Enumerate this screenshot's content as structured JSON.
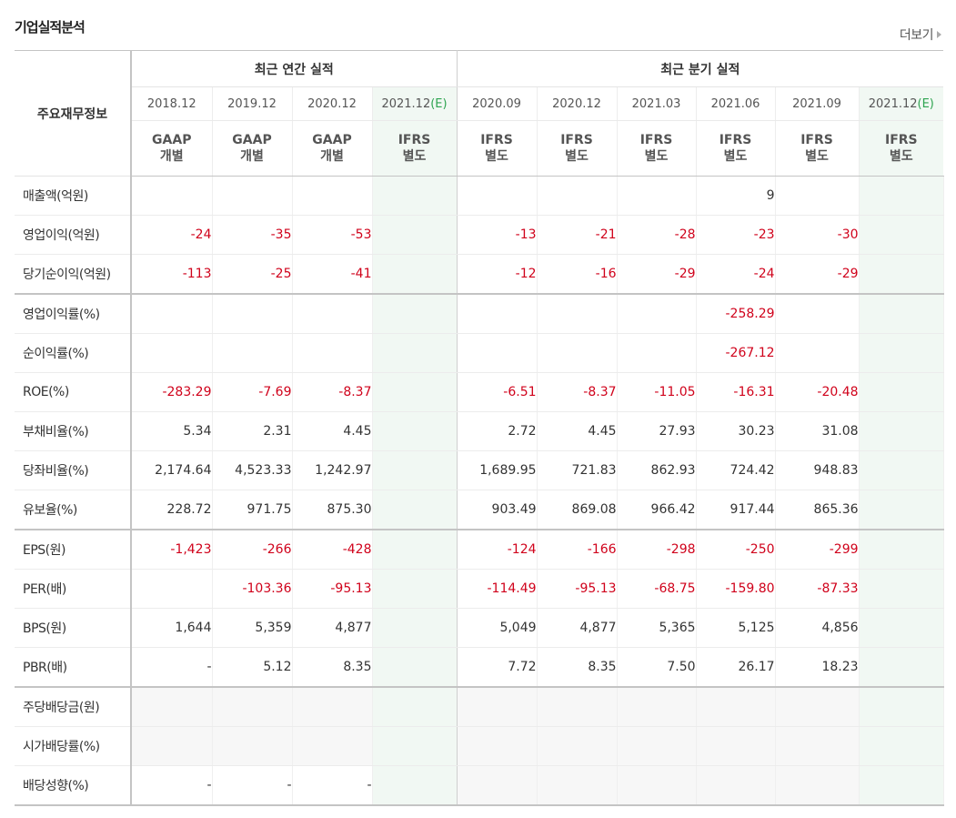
{
  "header": {
    "title": "기업실적분석",
    "more_label": "더보기"
  },
  "table": {
    "corner_label": "주요재무정보",
    "groups": [
      {
        "label": "최근 연간 실적"
      },
      {
        "label": "최근 분기 실적"
      }
    ],
    "columns": [
      {
        "period": "2018.12",
        "est": "",
        "std1": "GAAP",
        "std2": "개별"
      },
      {
        "period": "2019.12",
        "est": "",
        "std1": "GAAP",
        "std2": "개별"
      },
      {
        "period": "2020.12",
        "est": "",
        "std1": "GAAP",
        "std2": "개별"
      },
      {
        "period": "2021.12",
        "est": "(E)",
        "std1": "IFRS",
        "std2": "별도"
      },
      {
        "period": "2020.09",
        "est": "",
        "std1": "IFRS",
        "std2": "별도"
      },
      {
        "period": "2020.12",
        "est": "",
        "std1": "IFRS",
        "std2": "별도"
      },
      {
        "period": "2021.03",
        "est": "",
        "std1": "IFRS",
        "std2": "별도"
      },
      {
        "period": "2021.06",
        "est": "",
        "std1": "IFRS",
        "std2": "별도"
      },
      {
        "period": "2021.09",
        "est": "",
        "std1": "IFRS",
        "std2": "별도"
      },
      {
        "period": "2021.12",
        "est": "(E)",
        "std1": "IFRS",
        "std2": "별도"
      }
    ],
    "rows": [
      {
        "label": "매출액(억원)",
        "values": [
          "",
          "",
          "",
          "",
          "",
          "",
          "",
          "9",
          "",
          ""
        ]
      },
      {
        "label": "영업이익(억원)",
        "values": [
          "-24",
          "-35",
          "-53",
          "",
          "-13",
          "-21",
          "-28",
          "-23",
          "-30",
          ""
        ]
      },
      {
        "label": "당기순이익(억원)",
        "values": [
          "-113",
          "-25",
          "-41",
          "",
          "-12",
          "-16",
          "-29",
          "-24",
          "-29",
          ""
        ]
      },
      {
        "label": "영업이익률(%)",
        "values": [
          "",
          "",
          "",
          "",
          "",
          "",
          "",
          "-258.29",
          "",
          ""
        ]
      },
      {
        "label": "순이익률(%)",
        "values": [
          "",
          "",
          "",
          "",
          "",
          "",
          "",
          "-267.12",
          "",
          ""
        ]
      },
      {
        "label": "ROE(%)",
        "values": [
          "-283.29",
          "-7.69",
          "-8.37",
          "",
          "-6.51",
          "-8.37",
          "-11.05",
          "-16.31",
          "-20.48",
          ""
        ]
      },
      {
        "label": "부채비율(%)",
        "values": [
          "5.34",
          "2.31",
          "4.45",
          "",
          "2.72",
          "4.45",
          "27.93",
          "30.23",
          "31.08",
          ""
        ]
      },
      {
        "label": "당좌비율(%)",
        "values": [
          "2,174.64",
          "4,523.33",
          "1,242.97",
          "",
          "1,689.95",
          "721.83",
          "862.93",
          "724.42",
          "948.83",
          ""
        ]
      },
      {
        "label": "유보율(%)",
        "values": [
          "228.72",
          "971.75",
          "875.30",
          "",
          "903.49",
          "869.08",
          "966.42",
          "917.44",
          "865.36",
          ""
        ]
      },
      {
        "label": "EPS(원)",
        "values": [
          "-1,423",
          "-266",
          "-428",
          "",
          "-124",
          "-166",
          "-298",
          "-250",
          "-299",
          ""
        ]
      },
      {
        "label": "PER(배)",
        "values": [
          "",
          "-103.36",
          "-95.13",
          "",
          "-114.49",
          "-95.13",
          "-68.75",
          "-159.80",
          "-87.33",
          ""
        ]
      },
      {
        "label": "BPS(원)",
        "values": [
          "1,644",
          "5,359",
          "4,877",
          "",
          "5,049",
          "4,877",
          "5,365",
          "5,125",
          "4,856",
          ""
        ]
      },
      {
        "label": "PBR(배)",
        "values": [
          "-",
          "5.12",
          "8.35",
          "",
          "7.72",
          "8.35",
          "7.50",
          "26.17",
          "18.23",
          ""
        ]
      },
      {
        "label": "주당배당금(원)",
        "values": [
          "",
          "",
          "",
          "",
          "",
          "",
          "",
          "",
          "",
          ""
        ]
      },
      {
        "label": "시가배당률(%)",
        "values": [
          "",
          "",
          "",
          "",
          "",
          "",
          "",
          "",
          "",
          ""
        ]
      },
      {
        "label": "배당성향(%)",
        "values": [
          "-",
          "-",
          "-",
          "",
          "",
          "",
          "",
          "",
          "",
          ""
        ]
      }
    ]
  },
  "colors": {
    "negative": "#d0021b",
    "ifrs": "#ef6a1f",
    "estimate": "#2fa451",
    "estimate_bg": "#f1f8f3"
  }
}
